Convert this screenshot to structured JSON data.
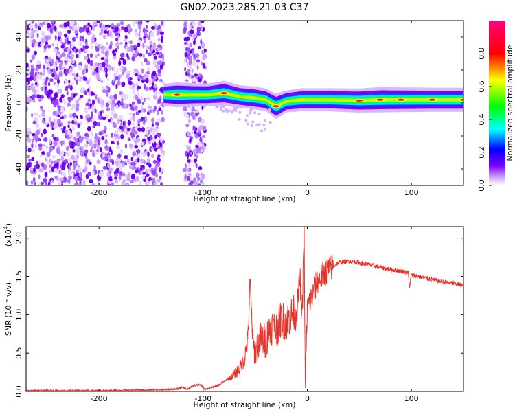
{
  "title": "GN02.2023.285.21.03.C37",
  "chart_data": [
    {
      "type": "heatmap",
      "xlabel": "Height of straight line (km)",
      "ylabel": "Frequency (Hz)",
      "xlim": [
        -270,
        150
      ],
      "ylim": [
        -50,
        50
      ],
      "xticks": [
        -200,
        -100,
        0,
        100
      ],
      "yticks": [
        -40,
        -20,
        0,
        20,
        40
      ],
      "colorbar": {
        "label": "Normalized spectral amplitude",
        "ticks": [
          0.0,
          0.2,
          0.4,
          0.6,
          0.8
        ],
        "range": [
          0,
          1
        ],
        "colors": [
          "#ffffff",
          "#d8b8ff",
          "#7a00ff",
          "#0000ff",
          "#00ffff",
          "#00ff00",
          "#ffff00",
          "#ff0000",
          "#ff0080"
        ]
      },
      "noise_region_x": [
        -270,
        -138
      ],
      "noise_band_x": [
        -118,
        -98
      ],
      "signal_ridge": [
        {
          "x": -138,
          "f": 5,
          "amp": 0.5
        },
        {
          "x": -125,
          "f": 5,
          "amp": 0.75
        },
        {
          "x": -110,
          "f": 5,
          "amp": 0.6
        },
        {
          "x": -95,
          "f": 5,
          "amp": 0.55
        },
        {
          "x": -80,
          "f": 6,
          "amp": 0.75
        },
        {
          "x": -65,
          "f": 4,
          "amp": 0.55
        },
        {
          "x": -50,
          "f": 3,
          "amp": 0.6
        },
        {
          "x": -40,
          "f": 2,
          "amp": 0.55
        },
        {
          "x": -30,
          "f": -2,
          "amp": 0.8
        },
        {
          "x": -20,
          "f": 1,
          "amp": 0.5
        },
        {
          "x": -5,
          "f": 2,
          "amp": 0.6
        },
        {
          "x": 20,
          "f": 2,
          "amp": 0.6
        },
        {
          "x": 50,
          "f": 1.5,
          "amp": 0.7
        },
        {
          "x": 70,
          "f": 2,
          "amp": 0.8
        },
        {
          "x": 90,
          "f": 2,
          "amp": 0.75
        },
        {
          "x": 120,
          "f": 2,
          "amp": 0.7
        },
        {
          "x": 150,
          "f": 2,
          "amp": 0.7
        }
      ]
    },
    {
      "type": "line",
      "xlabel": "Height of straight line (km)",
      "ylabel": "SNR (10 * v/v)",
      "y_multiplier": "(x10",
      "y_multiplier_exp": "4",
      "y_multiplier_close": ")",
      "xlim": [
        -270,
        150
      ],
      "ylim": [
        0,
        2.15
      ],
      "xticks": [
        -200,
        -100,
        0,
        100
      ],
      "yticks": [
        0.0,
        0.5,
        1.0,
        1.5,
        2.0
      ],
      "ytick_labels": [
        "0.0",
        "0.5",
        "1.0",
        "1.5",
        "2.0"
      ],
      "color": "#e8332a",
      "series": [
        {
          "x": [
            -270,
            -200,
            -150,
            -125,
            -120,
            -118,
            -115,
            -110,
            -105,
            -102,
            -98,
            -92,
            -85,
            -80,
            -75,
            -70,
            -65,
            -60,
            -57,
            -55,
            -52,
            -50,
            -45,
            -40,
            -35,
            -30,
            -25,
            -20,
            -15,
            -10,
            -7,
            -5,
            -3,
            -2,
            0,
            5,
            10,
            20,
            30,
            40,
            50,
            60,
            70,
            80,
            90,
            97,
            98,
            100,
            110,
            120,
            130,
            140,
            150
          ],
          "y": [
            0.01,
            0.01,
            0.02,
            0.03,
            0.06,
            0.04,
            0.03,
            0.07,
            0.09,
            0.08,
            0.03,
            0.05,
            0.08,
            0.13,
            0.17,
            0.22,
            0.3,
            0.45,
            0.7,
            1.42,
            0.6,
            0.5,
            0.7,
            0.65,
            0.85,
            0.8,
            0.95,
            0.9,
            1.0,
            1.05,
            1.5,
            0.95,
            2.15,
            0.05,
            1.1,
            1.25,
            1.45,
            1.58,
            1.68,
            1.7,
            1.68,
            1.65,
            1.62,
            1.59,
            1.57,
            1.55,
            1.35,
            1.52,
            1.49,
            1.46,
            1.43,
            1.41,
            1.38
          ]
        }
      ]
    }
  ]
}
